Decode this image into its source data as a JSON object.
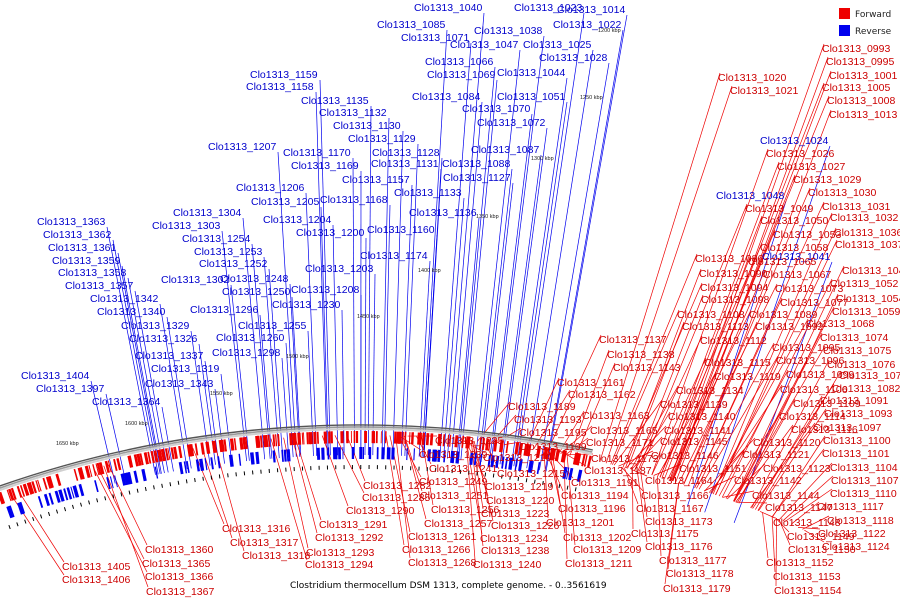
{
  "caption": "Clostridium thermocellum DSM 1313, complete genome. - 0..3561619",
  "legend": [
    {
      "label": "Forward",
      "color": "#ee0000"
    },
    {
      "label": "Reverse",
      "color": "#0000ee"
    }
  ],
  "scale_labels": [
    "1200 kbp",
    "1250 kbp",
    "1300 kbp",
    "1350 kbp",
    "1400 kbp",
    "1450 kbp",
    "1500 kbp",
    "1550 kbp",
    "1600 kbp",
    "1650 kbp"
  ],
  "reverse_labels": [
    "Clo1313_1040",
    "Clo1313_1023",
    "Clo1313_1014",
    "Clo1313_1085",
    "Clo1313_1038",
    "Clo1313_1022",
    "Clo1313_1071",
    "Clo1313_1047",
    "Clo1313_1025",
    "Clo1313_1028",
    "Clo1313_1066",
    "Clo1313_1069",
    "Clo1313_1044",
    "Clo1313_1159",
    "Clo1313_1158",
    "Clo1313_1084",
    "Clo1313_1051",
    "Clo1313_1135",
    "Clo1313_1070",
    "Clo1313_1132",
    "Clo1313_1072",
    "Clo1313_1130",
    "Clo1313_1129",
    "Clo1313_1024",
    "Clo1313_1207",
    "Clo1313_1170",
    "Clo1313_1128",
    "Clo1313_1087",
    "Clo1313_1169",
    "Clo1313_1131",
    "Clo1313_1088",
    "Clo1313_1157",
    "Clo1313_1127",
    "Clo1313_1206",
    "Clo1313_1133",
    "Clo1313_1048",
    "Clo1313_1205",
    "Clo1313_1168",
    "Clo1313_1304",
    "Clo1313_1136",
    "Clo1313_1363",
    "Clo1313_1204",
    "Clo1313_1303",
    "Clo1313_1160",
    "Clo1313_1200",
    "Clo1313_1362",
    "Clo1313_1254",
    "Clo1313_1041",
    "Clo1313_1361",
    "Clo1313_1253",
    "Clo1313_1174",
    "Clo1313_1359",
    "Clo1313_1252",
    "Clo1313_1203",
    "Clo1313_1358",
    "Clo1313_1248",
    "Clo1313_1302",
    "Clo1313_1357",
    "Clo1313_1250",
    "Clo1313_1208",
    "Clo1313_1342",
    "Clo1313_1296",
    "Clo1313_1230",
    "Clo1313_1340",
    "Clo1313_1255",
    "Clo1313_1329",
    "Clo1313_1260",
    "Clo1313_1326",
    "Clo1313_1298",
    "Clo1313_1337",
    "Clo1313_1319",
    "Clo1313_1404",
    "Clo1313_1343",
    "Clo1313_1397",
    "Clo1313_1364"
  ],
  "forward_labels_right": [
    "Clo1313_0993",
    "Clo1313_0995",
    "Clo1313_1001",
    "Clo1313_1020",
    "Clo1313_1005",
    "Clo1313_1021",
    "Clo1313_1008",
    "Clo1313_1013",
    "Clo1313_1026",
    "Clo1313_1027",
    "Clo1313_1029",
    "Clo1313_1030",
    "Clo1313_1031",
    "Clo1313_1049",
    "Clo1313_1032",
    "Clo1313_1050",
    "Clo1313_1036",
    "Clo1313_1053",
    "Clo1313_1037",
    "Clo1313_1058",
    "Clo1313_1086",
    "Clo1313_1065",
    "Clo1313_1046",
    "Clo1313_1090",
    "Clo1313_1067",
    "Clo1313_1052",
    "Clo1313_1094",
    "Clo1313_1073",
    "Clo1313_1054",
    "Clo1313_1098",
    "Clo1313_1077",
    "Clo1313_1059",
    "Clo1313_1108",
    "Clo1313_1089",
    "Clo1313_1068",
    "Clo1313_1113",
    "Clo1313_1092",
    "Clo1313_1074",
    "Clo1313_1112",
    "Clo1313_1095",
    "Clo1313_1075",
    "Clo1313_1096",
    "Clo1313_1076",
    "Clo1313_1115",
    "Clo1313_1099",
    "Clo1313_1078",
    "Clo1313_1119",
    "Clo1313_1082",
    "Clo1313_1106",
    "Clo1313_1109",
    "Clo1313_1091",
    "Clo1313_1114",
    "Clo1313_1093",
    "Clo1313_1116",
    "Clo1313_1097",
    "Clo1313_1120",
    "Clo1313_1100",
    "Clo1313_1121",
    "Clo1313_1101",
    "Clo1313_1123",
    "Clo1313_1104",
    "Clo1313_1107",
    "Clo1313_1110",
    "Clo1313_1117",
    "Clo1313_1118",
    "Clo1313_1122",
    "Clo1313_1124",
    "Clo1313_1142",
    "Clo1313_1144",
    "Clo1313_1147",
    "Clo1313_1148",
    "Clo1313_1149",
    "Clo1313_1150",
    "Clo1313_1152",
    "Clo1313_1153",
    "Clo1313_1154"
  ],
  "forward_labels_middle": [
    "Clo1313_1137",
    "Clo1313_1138",
    "Clo1313_1143",
    "Clo1313_1161",
    "Clo1313_1134",
    "Clo1313_1162",
    "Clo1313_1189",
    "Clo1313_1139",
    "Clo1313_1163",
    "Clo1313_1140",
    "Clo1313_1193",
    "Clo1313_1195",
    "Clo1313_1165",
    "Clo1313_1141",
    "Clo1313_1225",
    "Clo1313_1199",
    "Clo1313_1171",
    "Clo1313_1145",
    "Clo1313_1239",
    "Clo1313_1210",
    "Clo1313_1172",
    "Clo1313_1146",
    "Clo1313_1241",
    "Clo1313_1215",
    "Clo1313_1187",
    "Clo1313_1151",
    "Clo1313_1249",
    "Clo1313_1219",
    "Clo1313_1191",
    "Clo1313_1164",
    "Clo1313_1282",
    "Clo1313_1251",
    "Clo1313_1220",
    "Clo1313_1194",
    "Clo1313_1166",
    "Clo1313_1285",
    "Clo1313_1256",
    "Clo1313_1223",
    "Clo1313_1196",
    "Clo1313_1167",
    "Clo1313_1290",
    "Clo1313_1257",
    "Clo1313_1226",
    "Clo1313_1201",
    "Clo1313_1173",
    "Clo1313_1316",
    "Clo1313_1291",
    "Clo1313_1261",
    "Clo1313_1234",
    "Clo1313_1202",
    "Clo1313_1175",
    "Clo1313_1317",
    "Clo1313_1292",
    "Clo1313_1266",
    "Clo1313_1238",
    "Clo1313_1209",
    "Clo1313_1176",
    "Clo1313_1318",
    "Clo1313_1293",
    "Clo1313_1268",
    "Clo1313_1240",
    "Clo1313_1211",
    "Clo1313_1177",
    "Clo1313_1294",
    "Clo1313_1178",
    "Clo1313_1179"
  ],
  "forward_labels_left": [
    "Clo1313_1360",
    "Clo1313_1405",
    "Clo1313_1365",
    "Clo1313_1406",
    "Clo1313_1366",
    "Clo1313_1367"
  ]
}
